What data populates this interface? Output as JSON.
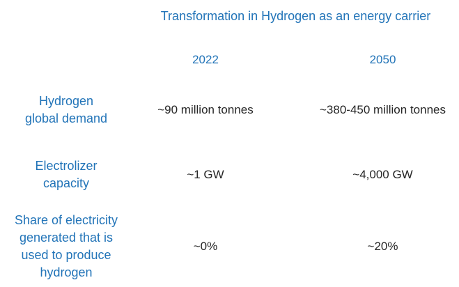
{
  "colors": {
    "accent_blue": "#2274B8",
    "value_text": "#262626",
    "background": "#FFFFFF"
  },
  "chart_data": {
    "type": "table",
    "title": "Transformation in Hydrogen as an energy carrier",
    "columns": [
      "2022",
      "2050"
    ],
    "rows": [
      {
        "label": "Hydrogen global demand",
        "label_lines": [
          "Hydrogen",
          "global demand"
        ],
        "values": [
          "~90 million tonnes",
          "~380-450 million tonnes"
        ]
      },
      {
        "label": "Electrolizer capacity",
        "label_lines": [
          "Electrolizer",
          "capacity"
        ],
        "values": [
          "~1 GW",
          "~4,000 GW"
        ]
      },
      {
        "label": "Share of electricity generated that is used to produce hydrogen",
        "label_lines": [
          "Share of electricity",
          "generated that is",
          "used to produce",
          "hydrogen"
        ],
        "values": [
          "~0%",
          "~20%"
        ]
      }
    ],
    "layout": {
      "legend": "none",
      "grid": "off",
      "header_position": "top"
    }
  }
}
